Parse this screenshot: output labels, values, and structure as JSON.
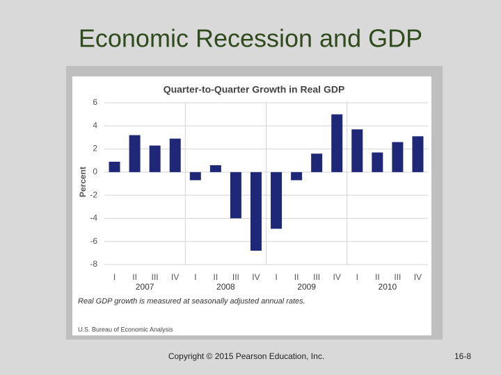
{
  "slide_title": "Economic Recession and GDP",
  "footer": {
    "copyright": "Copyright © 2015 Pearson Education, Inc.",
    "page": "16-8"
  },
  "chart_data": {
    "type": "bar",
    "title": "Quarter-to-Quarter Growth in Real GDP",
    "y_label": "Percent",
    "categories": [
      "I",
      "II",
      "III",
      "IV",
      "I",
      "II",
      "III",
      "IV",
      "I",
      "II",
      "III",
      "IV",
      "I",
      "II",
      "III",
      "IV"
    ],
    "year_labels": [
      "2007",
      "2008",
      "2009",
      "2010"
    ],
    "values": [
      0.9,
      3.2,
      2.3,
      2.9,
      -0.7,
      0.6,
      -4.0,
      -6.8,
      -4.9,
      -0.7,
      1.6,
      5.0,
      3.7,
      1.7,
      2.6,
      3.1
    ],
    "color": "#1f2878",
    "ylim": [
      -8,
      6
    ],
    "yticks": [
      6,
      4,
      2,
      0,
      -2,
      -4,
      -6,
      -8
    ],
    "grid": true,
    "note": "Real GDP growth is measured at seasonally adjusted annual rates.",
    "source": "U.S. Bureau of Economic Analysis"
  }
}
